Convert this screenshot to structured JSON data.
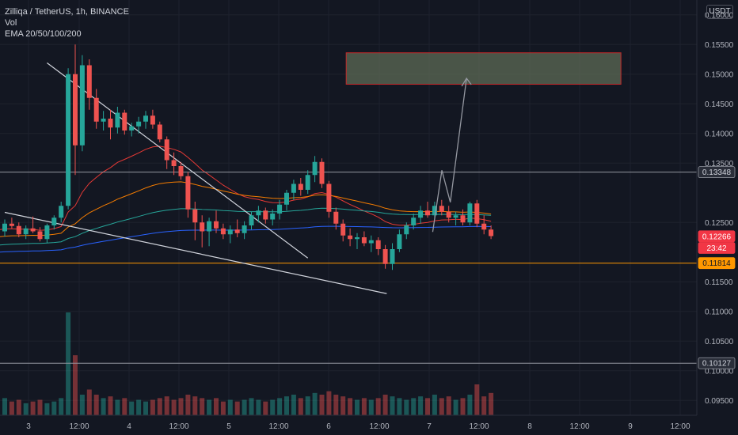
{
  "legend": {
    "symbol_line": "Zilliqa / TetherUS, 1h, BINANCE",
    "vol_label": "Vol",
    "ema_label": "EMA 20/50/100/200"
  },
  "currency_button": "USDT",
  "colors": {
    "background": "#131722",
    "up": "#26a69a",
    "down": "#ef5350",
    "ema20": "#e53935",
    "ema50": "#f57c00",
    "ema100": "#26a69a",
    "ema200": "#2962ff",
    "hline_orange": "#ff9800",
    "price_tag": "#f23645"
  },
  "chart_data": {
    "type": "candlestick",
    "title": "Zilliqa / TetherUS, 1h, BINANCE",
    "ylim": [
      0.0925,
      0.1625
    ],
    "grid": true,
    "y_ticks": [
      "0.16000",
      "0.15500",
      "0.15000",
      "0.14500",
      "0.14000",
      "0.13500",
      "0.12500",
      "0.11500",
      "0.11000",
      "0.10500",
      "0.10000",
      "0.09500"
    ],
    "x_ticks": [
      "3",
      "12:00",
      "4",
      "12:00",
      "5",
      "12:00",
      "6",
      "12:00",
      "7",
      "12:00",
      "8",
      "12:00",
      "9",
      "12:00"
    ],
    "price_tags": [
      {
        "label": "0.13348",
        "value": 0.13348,
        "style": "gray"
      },
      {
        "label": "0.12266",
        "value": 0.12266,
        "style": "red"
      },
      {
        "label": "23:42",
        "value": 0.1207,
        "style": "red"
      },
      {
        "label": "0.11814",
        "value": 0.11814,
        "style": "orange"
      },
      {
        "label": "0.10127",
        "value": 0.10127,
        "style": "gray"
      }
    ],
    "horizontal_lines": [
      {
        "value": 0.13348,
        "style": "gray"
      },
      {
        "value": 0.11814,
        "style": "orange"
      },
      {
        "value": 0.10127,
        "style": "gray"
      }
    ],
    "target_zone": {
      "x0": 28,
      "x1": 52.6,
      "y_low": 0.1483,
      "y_high": 0.1536
    },
    "projection_arrow": [
      [
        40.5,
        0.1234
      ],
      [
        41.8,
        0.1338
      ],
      [
        43.0,
        0.1284
      ],
      [
        45.3,
        0.1493
      ]
    ],
    "trendlines": [
      [
        [
          6.0,
          0.1519
        ],
        [
          43.0,
          0.119
        ]
      ],
      [
        [
          0,
          0.1267
        ],
        [
          54.2,
          0.113
        ]
      ]
    ],
    "candles": [
      [
        0.1235,
        0.1255,
        0.1226,
        0.1248
      ],
      [
        0.1248,
        0.1258,
        0.124,
        0.1244
      ],
      [
        0.1244,
        0.125,
        0.1225,
        0.123
      ],
      [
        0.123,
        0.1245,
        0.1222,
        0.124
      ],
      [
        0.124,
        0.126,
        0.1232,
        0.1235
      ],
      [
        0.1235,
        0.1242,
        0.1218,
        0.1222
      ],
      [
        0.1222,
        0.1248,
        0.1215,
        0.1245
      ],
      [
        0.1245,
        0.1262,
        0.1238,
        0.1258
      ],
      [
        0.1258,
        0.1285,
        0.125,
        0.1278
      ],
      [
        0.1278,
        0.151,
        0.1272,
        0.15
      ],
      [
        0.15,
        0.155,
        0.133,
        0.138
      ],
      [
        0.138,
        0.1532,
        0.137,
        0.1515
      ],
      [
        0.1515,
        0.1525,
        0.144,
        0.146
      ],
      [
        0.146,
        0.1475,
        0.1408,
        0.142
      ],
      [
        0.142,
        0.1438,
        0.1405,
        0.1425
      ],
      [
        0.1425,
        0.144,
        0.139,
        0.141
      ],
      [
        0.141,
        0.1445,
        0.14,
        0.1435
      ],
      [
        0.1435,
        0.144,
        0.1398,
        0.1405
      ],
      [
        0.1405,
        0.1418,
        0.1395,
        0.1412
      ],
      [
        0.1412,
        0.1428,
        0.14,
        0.142
      ],
      [
        0.142,
        0.1438,
        0.1408,
        0.143
      ],
      [
        0.143,
        0.144,
        0.1408,
        0.1415
      ],
      [
        0.1415,
        0.142,
        0.1385,
        0.139
      ],
      [
        0.139,
        0.1395,
        0.134,
        0.1355
      ],
      [
        0.1355,
        0.1368,
        0.133,
        0.1345
      ],
      [
        0.1345,
        0.1352,
        0.1322,
        0.1328
      ],
      [
        0.1328,
        0.1335,
        0.1258,
        0.1272
      ],
      [
        0.1272,
        0.1285,
        0.122,
        0.125
      ],
      [
        0.125,
        0.1262,
        0.1208,
        0.1235
      ],
      [
        0.1235,
        0.1258,
        0.121,
        0.1252
      ],
      [
        0.1252,
        0.127,
        0.1232,
        0.124
      ],
      [
        0.124,
        0.1248,
        0.1222,
        0.123
      ],
      [
        0.123,
        0.1245,
        0.1215,
        0.1238
      ],
      [
        0.1238,
        0.1255,
        0.1225,
        0.1232
      ],
      [
        0.1232,
        0.1252,
        0.1222,
        0.1245
      ],
      [
        0.1245,
        0.1268,
        0.1238,
        0.1262
      ],
      [
        0.1262,
        0.1278,
        0.125,
        0.127
      ],
      [
        0.127,
        0.1275,
        0.1248,
        0.1255
      ],
      [
        0.1255,
        0.1272,
        0.1245,
        0.1265
      ],
      [
        0.1265,
        0.1288,
        0.1255,
        0.128
      ],
      [
        0.128,
        0.1305,
        0.127,
        0.13
      ],
      [
        0.13,
        0.1322,
        0.1288,
        0.1315
      ],
      [
        0.1315,
        0.1325,
        0.1295,
        0.1305
      ],
      [
        0.1305,
        0.1338,
        0.1298,
        0.133
      ],
      [
        0.133,
        0.1362,
        0.1318,
        0.1352
      ],
      [
        0.1352,
        0.1358,
        0.1308,
        0.1315
      ],
      [
        0.1315,
        0.132,
        0.1258,
        0.1268
      ],
      [
        0.1268,
        0.1275,
        0.1238,
        0.1248
      ],
      [
        0.1248,
        0.1255,
        0.1218,
        0.1228
      ],
      [
        0.1228,
        0.124,
        0.121,
        0.1222
      ],
      [
        0.1222,
        0.1232,
        0.1205,
        0.1225
      ],
      [
        0.1225,
        0.1235,
        0.121,
        0.1215
      ],
      [
        0.1215,
        0.1228,
        0.12,
        0.122
      ],
      [
        0.122,
        0.1225,
        0.1195,
        0.1205
      ],
      [
        0.1205,
        0.1212,
        0.1172,
        0.118
      ],
      [
        0.118,
        0.1215,
        0.117,
        0.1205
      ],
      [
        0.1205,
        0.1238,
        0.12,
        0.123
      ],
      [
        0.123,
        0.125,
        0.1222,
        0.1245
      ],
      [
        0.1245,
        0.1265,
        0.1238,
        0.1258
      ],
      [
        0.1258,
        0.1278,
        0.1248,
        0.127
      ],
      [
        0.127,
        0.1285,
        0.1258,
        0.1262
      ],
      [
        0.1262,
        0.1285,
        0.1255,
        0.1278
      ],
      [
        0.1278,
        0.1288,
        0.1262,
        0.1268
      ],
      [
        0.1268,
        0.1278,
        0.125,
        0.1258
      ],
      [
        0.1258,
        0.1268,
        0.1245,
        0.1262
      ],
      [
        0.1262,
        0.1272,
        0.1245,
        0.125
      ],
      [
        0.125,
        0.1285,
        0.1245,
        0.1282
      ],
      [
        0.1282,
        0.1288,
        0.1242,
        0.1248
      ],
      [
        0.1248,
        0.1262,
        0.123,
        0.1238
      ],
      [
        0.1238,
        0.1245,
        0.1222,
        0.1227
      ]
    ],
    "volumes": [
      0.01,
      0.008,
      0.009,
      0.007,
      0.008,
      0.009,
      0.007,
      0.008,
      0.01,
      0.06,
      0.035,
      0.012,
      0.015,
      0.012,
      0.01,
      0.011,
      0.009,
      0.01,
      0.008,
      0.009,
      0.008,
      0.009,
      0.01,
      0.011,
      0.009,
      0.01,
      0.012,
      0.011,
      0.01,
      0.009,
      0.01,
      0.008,
      0.009,
      0.008,
      0.009,
      0.01,
      0.009,
      0.008,
      0.009,
      0.01,
      0.011,
      0.012,
      0.01,
      0.011,
      0.013,
      0.012,
      0.014,
      0.012,
      0.011,
      0.01,
      0.009,
      0.01,
      0.009,
      0.01,
      0.012,
      0.011,
      0.01,
      0.009,
      0.01,
      0.011,
      0.01,
      0.012,
      0.01,
      0.011,
      0.009,
      0.01,
      0.012,
      0.018,
      0.011,
      0.013
    ]
  }
}
